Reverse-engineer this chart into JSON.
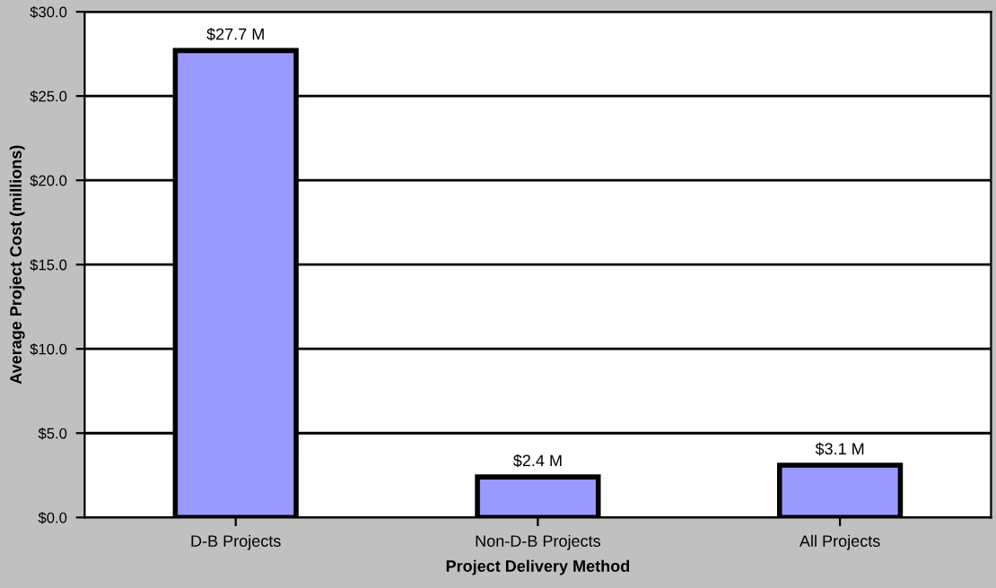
{
  "chart_data": {
    "type": "bar",
    "xlabel": "Project Delivery Method",
    "ylabel": "Average Project Cost (millions)",
    "categories": [
      "D-B Projects",
      "Non-D-B Projects",
      "All Projects"
    ],
    "values": [
      27.7,
      2.4,
      3.1
    ],
    "value_labels": [
      "$27.7 M",
      "$2.4 M",
      "$3.1 M"
    ],
    "color": "#9999ff",
    "ylim": [
      0,
      30
    ],
    "yticks": [
      {
        "value": 0,
        "label": "$0.0"
      },
      {
        "value": 5,
        "label": "$5.0"
      },
      {
        "value": 10,
        "label": "$10.0"
      },
      {
        "value": 15,
        "label": "$15.0"
      },
      {
        "value": 20,
        "label": "$20.0"
      },
      {
        "value": 25,
        "label": "$25.0"
      },
      {
        "value": 30,
        "label": "$30.0"
      }
    ],
    "grid": "y"
  }
}
